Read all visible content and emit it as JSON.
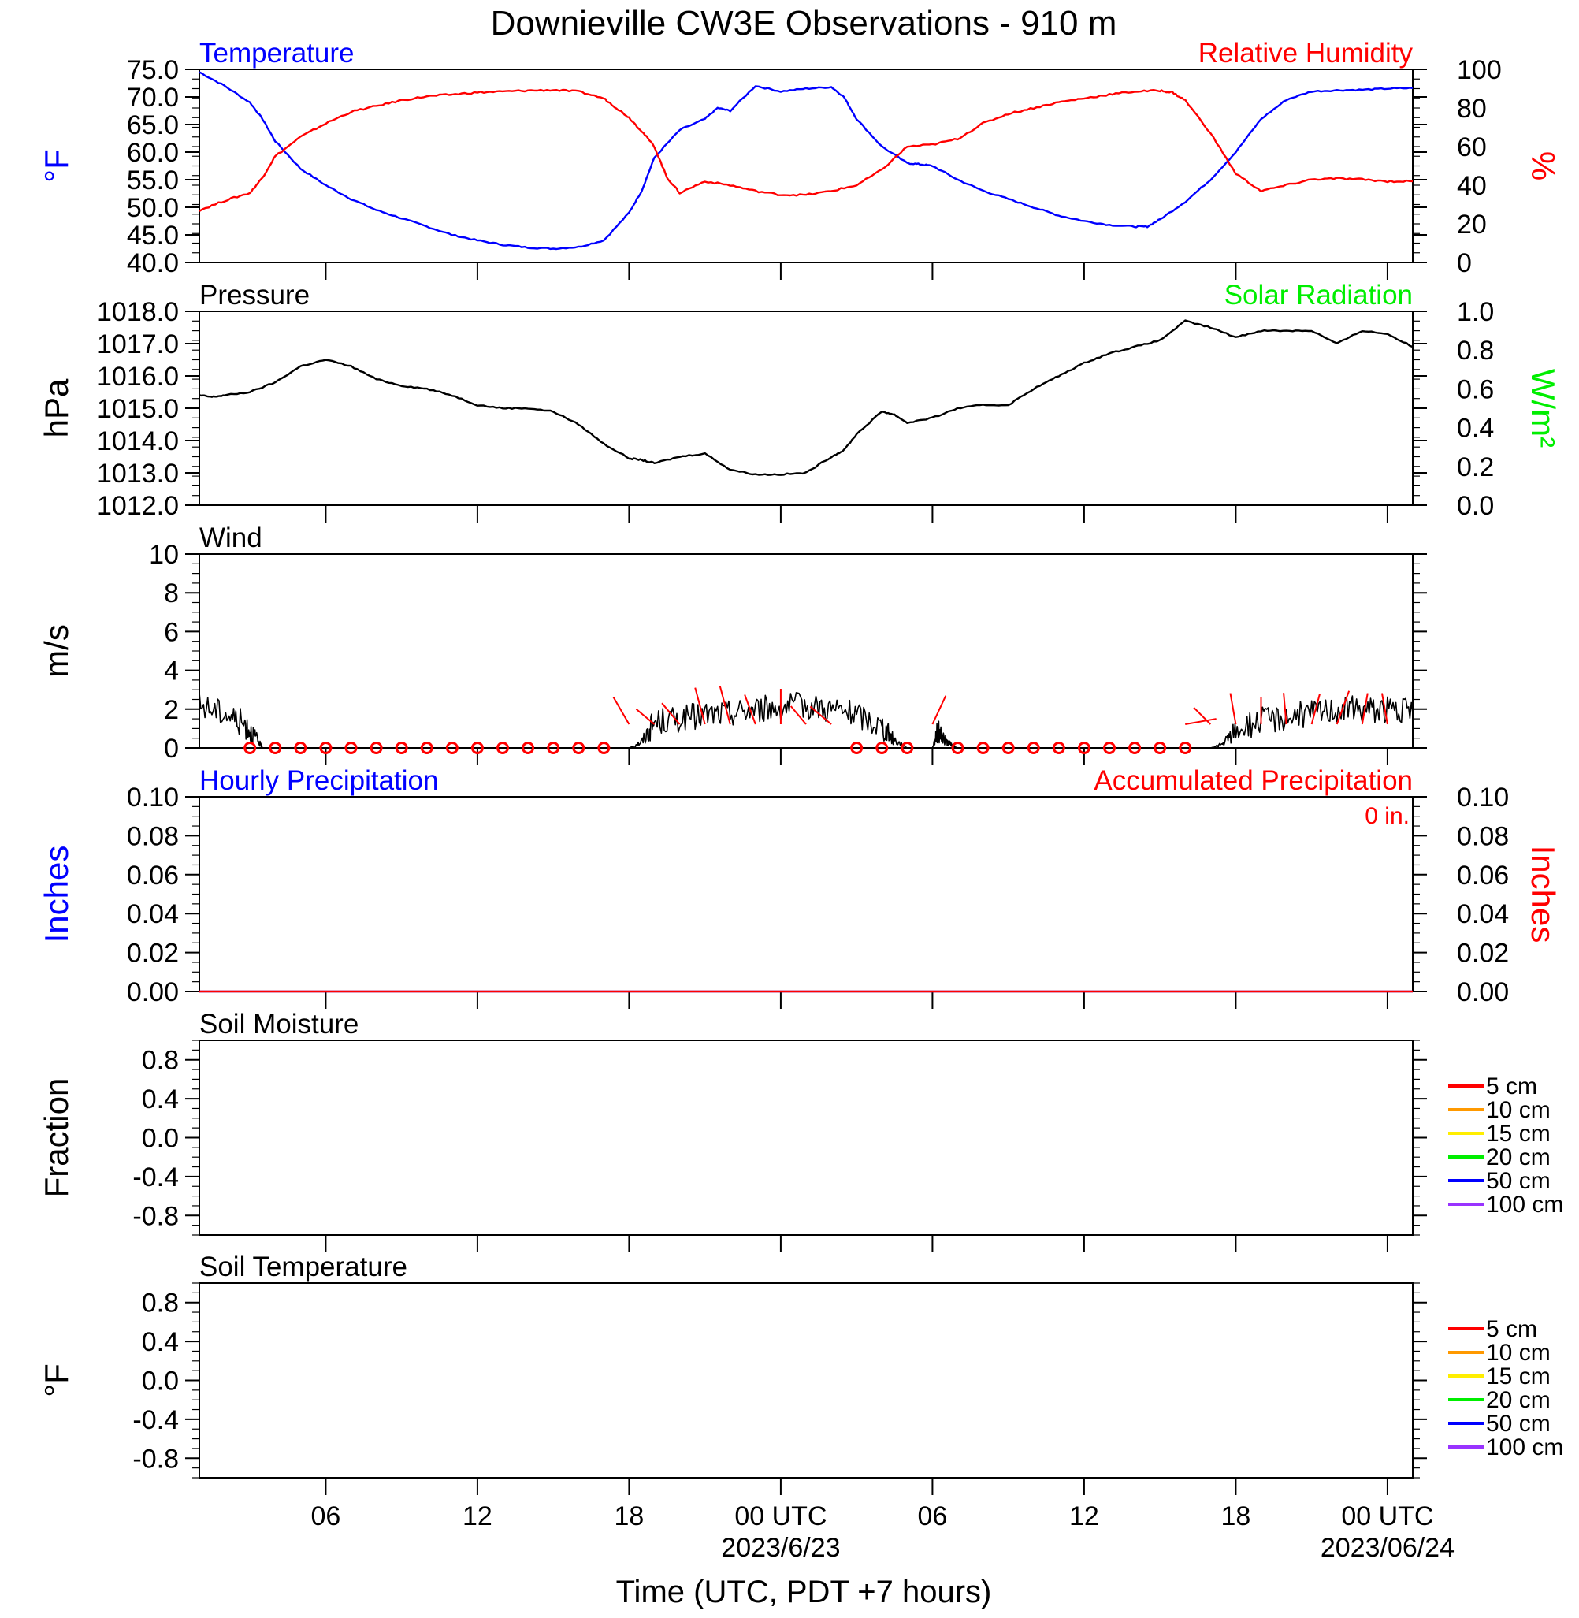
{
  "title": "Downieville CW3E Observations - 910 m",
  "xlabel": "Time (UTC, PDT +7 hours)",
  "colors": {
    "temperature": "#0000ff",
    "humidity": "#ff0000",
    "pressure": "#000000",
    "solar": "#00ee00",
    "wind": "#000000",
    "barb": "#ff0000",
    "precip_hourly": "#0000ff",
    "precip_accum": "#ff0000"
  },
  "x_axis": {
    "range_hours": [
      0,
      48
    ],
    "ticks": [
      {
        "h": 5,
        "label": "06"
      },
      {
        "h": 11,
        "label": "12"
      },
      {
        "h": 17,
        "label": "18"
      },
      {
        "h": 23,
        "label": "00 UTC",
        "date": "2023/6/23"
      },
      {
        "h": 29,
        "label": "06"
      },
      {
        "h": 35,
        "label": "12"
      },
      {
        "h": 41,
        "label": "18"
      },
      {
        "h": 47,
        "label": "00 UTC",
        "date": "2023/06/24"
      }
    ]
  },
  "chart_data": [
    {
      "type": "line",
      "panel": "temperature-humidity",
      "left_label": "Temperature",
      "right_label": "Relative Humidity",
      "left_unit": "°F",
      "right_unit": "%",
      "ylim_left": [
        40,
        75
      ],
      "yticks_left": [
        "40.0",
        "45.0",
        "50.0",
        "55.0",
        "60.0",
        "65.0",
        "70.0",
        "75.0"
      ],
      "ylim_right": [
        0,
        100
      ],
      "yticks_right": [
        "0",
        "20",
        "40",
        "60",
        "80",
        "100"
      ],
      "series": [
        {
          "name": "Temperature",
          "axis": "left",
          "x": [
            0,
            1,
            2,
            2.5,
            3,
            4,
            5,
            6,
            7,
            8,
            9,
            10,
            11,
            12,
            13,
            14,
            15,
            16,
            17,
            17.5,
            18,
            19,
            20,
            20.5,
            21,
            22,
            23,
            24,
            25,
            25.5,
            26,
            27,
            28,
            28.5,
            29,
            30,
            31,
            32,
            33,
            34,
            35,
            36,
            37,
            37.5,
            38,
            39,
            40,
            41,
            42,
            43,
            44,
            45,
            46,
            47,
            48
          ],
          "y": [
            74.5,
            72,
            69,
            66,
            62,
            57,
            54,
            51.5,
            49.5,
            48,
            46.5,
            45,
            44,
            43.2,
            42.7,
            42.5,
            42.8,
            44,
            49,
            53,
            59,
            64,
            66,
            68,
            67.5,
            72,
            71,
            71.5,
            71.8,
            70,
            66,
            61,
            58,
            57.8,
            57.5,
            55,
            53,
            51.5,
            50,
            48.5,
            47.5,
            46.8,
            46.5,
            46.5,
            47.8,
            51,
            55,
            60,
            66,
            69.5,
            71,
            71.2,
            71.3,
            71.5,
            71.6
          ]
        },
        {
          "name": "Relative Humidity",
          "axis": "right",
          "x": [
            0,
            1,
            2,
            2.5,
            3,
            4,
            5,
            6,
            7,
            8,
            9,
            10,
            11,
            12,
            13,
            14,
            15,
            16,
            16.5,
            17,
            17.5,
            18,
            18.5,
            19,
            20,
            21,
            22,
            23,
            24,
            25,
            26,
            27,
            28,
            29,
            30,
            31,
            32,
            33,
            34,
            35,
            36,
            37,
            38,
            38.5,
            39,
            40,
            41,
            42,
            43,
            44,
            45,
            46,
            47,
            48
          ],
          "y": [
            27,
            32,
            36,
            44,
            55,
            65,
            72,
            78,
            81,
            84,
            86,
            87,
            88,
            88.5,
            89,
            89.3,
            88.5,
            85,
            80,
            75,
            68,
            60,
            44,
            36,
            42,
            40,
            37,
            35,
            35,
            37,
            40,
            48,
            60,
            61,
            64,
            72,
            77,
            80,
            83,
            85,
            87,
            88.5,
            89,
            88,
            84,
            67,
            46,
            37,
            40,
            43,
            43.5,
            43,
            42,
            42
          ]
        }
      ]
    },
    {
      "type": "line",
      "panel": "pressure-solar",
      "left_label": "Pressure",
      "right_label": "Solar Radiation",
      "left_unit": "hPa",
      "right_unit": "W/m²",
      "ylim_left": [
        1012,
        1018
      ],
      "yticks_left": [
        "1012.0",
        "1013.0",
        "1014.0",
        "1015.0",
        "1016.0",
        "1017.0",
        "1018.0"
      ],
      "ylim_right": [
        0,
        1
      ],
      "yticks_right": [
        "0.0",
        "0.2",
        "0.4",
        "0.6",
        "0.8",
        "1.0"
      ],
      "series": [
        {
          "name": "Pressure",
          "axis": "left",
          "x": [
            0,
            0.5,
            1,
            2,
            3,
            4,
            5,
            6,
            7,
            8,
            9,
            10,
            11,
            12,
            13,
            14,
            15,
            16,
            17,
            17.5,
            18,
            19,
            20,
            21,
            22,
            23,
            24,
            25,
            25.5,
            26,
            27,
            27.5,
            28,
            29,
            30,
            31,
            32,
            33,
            34,
            35,
            36,
            37,
            38,
            39,
            40,
            41,
            42,
            43,
            44,
            45,
            46,
            47,
            48
          ],
          "y": [
            1015.4,
            1015.35,
            1015.4,
            1015.5,
            1015.8,
            1016.3,
            1016.5,
            1016.3,
            1015.9,
            1015.7,
            1015.6,
            1015.4,
            1015.1,
            1015.0,
            1015.0,
            1014.9,
            1014.5,
            1013.9,
            1013.45,
            1013.4,
            1013.3,
            1013.5,
            1013.6,
            1013.1,
            1012.95,
            1012.95,
            1013.0,
            1013.5,
            1013.7,
            1014.2,
            1014.9,
            1014.8,
            1014.55,
            1014.7,
            1015.0,
            1015.1,
            1015.1,
            1015.6,
            1016.0,
            1016.4,
            1016.7,
            1016.9,
            1017.1,
            1017.7,
            1017.5,
            1017.2,
            1017.4,
            1017.4,
            1017.4,
            1017.0,
            1017.4,
            1017.3,
            1016.9
          ]
        }
      ]
    },
    {
      "type": "line",
      "panel": "wind",
      "left_label": "Wind",
      "left_unit": "m/s",
      "ylim_left": [
        0,
        10
      ],
      "yticks_left": [
        "0",
        "2",
        "4",
        "6",
        "8",
        "10"
      ],
      "series": [
        {
          "name": "Wind",
          "axis": "left",
          "x": [
            0,
            1,
            1.8,
            2.2,
            2.5,
            17,
            17.5,
            18,
            19,
            20,
            21,
            22,
            23,
            24,
            25,
            26,
            27,
            27.5,
            28,
            29,
            29.2,
            29.5,
            29.8,
            30,
            40,
            40.5,
            41,
            42,
            43,
            44,
            45,
            46,
            47,
            48
          ],
          "y": [
            2.2,
            1.8,
            1.2,
            0.6,
            0,
            0,
            0.3,
            1.3,
            1.5,
            1.7,
            1.8,
            2.0,
            2.1,
            2.2,
            2.0,
            1.7,
            1.1,
            0.4,
            0,
            0,
            0.9,
            0.4,
            0.1,
            0,
            0,
            0.2,
            0.9,
            1.4,
            1.6,
            1.8,
            2.0,
            2.0,
            2.0,
            1.8
          ]
        }
      ],
      "calm_markers_h": [
        2,
        3,
        4,
        5,
        6,
        7,
        8,
        9,
        10,
        11,
        12,
        13,
        14,
        15,
        16,
        26,
        27,
        28,
        30,
        31,
        32,
        33,
        34,
        35,
        36,
        37,
        38,
        39
      ],
      "barbs": [
        {
          "h": 17,
          "len": 40,
          "dir": -30
        },
        {
          "h": 18,
          "len": 30,
          "dir": -50
        },
        {
          "h": 19,
          "len": 35,
          "dir": -40
        },
        {
          "h": 20,
          "len": 48,
          "dir": -15
        },
        {
          "h": 21,
          "len": 50,
          "dir": -15
        },
        {
          "h": 22,
          "len": 40,
          "dir": -20
        },
        {
          "h": 23,
          "len": 45,
          "dir": 0
        },
        {
          "h": 24,
          "len": 30,
          "dir": -40
        },
        {
          "h": 25,
          "len": 35,
          "dir": -50
        },
        {
          "h": 29,
          "len": 40,
          "dir": 25
        },
        {
          "h": 39,
          "len": 40,
          "dir": 80
        },
        {
          "h": 40,
          "len": 30,
          "dir": -45
        },
        {
          "h": 41,
          "len": 40,
          "dir": -10
        },
        {
          "h": 42,
          "len": 35,
          "dir": 0
        },
        {
          "h": 43,
          "len": 40,
          "dir": -5
        },
        {
          "h": 44,
          "len": 40,
          "dir": 15
        },
        {
          "h": 45,
          "len": 45,
          "dir": 20
        },
        {
          "h": 46,
          "len": 40,
          "dir": 10
        },
        {
          "h": 47,
          "len": 40,
          "dir": -10
        }
      ]
    },
    {
      "type": "line",
      "panel": "precipitation",
      "left_label": "Hourly Precipitation",
      "right_label": "Accumulated Precipitation",
      "left_unit": "Inches",
      "right_unit": "Inches",
      "annotation": "0 in.",
      "ylim_left": [
        0,
        0.1
      ],
      "yticks_left": [
        "0.00",
        "0.02",
        "0.04",
        "0.06",
        "0.08",
        "0.10"
      ],
      "ylim_right": [
        0,
        0.1
      ],
      "yticks_right": [
        "0.00",
        "0.02",
        "0.04",
        "0.06",
        "0.08",
        "0.10"
      ],
      "series": [
        {
          "name": "Hourly Precipitation",
          "axis": "left",
          "x": [
            0,
            48
          ],
          "y": [
            0,
            0
          ]
        },
        {
          "name": "Accumulated Precipitation",
          "axis": "right",
          "x": [
            0,
            48
          ],
          "y": [
            0,
            0
          ]
        }
      ]
    },
    {
      "type": "line",
      "panel": "soil-moisture",
      "left_label": "Soil Moisture",
      "left_unit": "Fraction",
      "ylim_left": [
        -1,
        1
      ],
      "yticks_left": [
        "-0.8",
        "-0.4",
        "0.0",
        "0.4",
        "0.8"
      ],
      "legend": [
        {
          "name": "5 cm",
          "color": "#ff0000"
        },
        {
          "name": "10 cm",
          "color": "#ff9900"
        },
        {
          "name": "15 cm",
          "color": "#ffee00"
        },
        {
          "name": "20 cm",
          "color": "#00ee00"
        },
        {
          "name": "50 cm",
          "color": "#0000ff"
        },
        {
          "name": "100 cm",
          "color": "#9933ff"
        }
      ]
    },
    {
      "type": "line",
      "panel": "soil-temperature",
      "left_label": "Soil Temperature",
      "left_unit": "°F",
      "ylim_left": [
        -1,
        1
      ],
      "yticks_left": [
        "-0.8",
        "-0.4",
        "0.0",
        "0.4",
        "0.8"
      ],
      "legend": [
        {
          "name": "5 cm",
          "color": "#ff0000"
        },
        {
          "name": "10 cm",
          "color": "#ff9900"
        },
        {
          "name": "15 cm",
          "color": "#ffee00"
        },
        {
          "name": "20 cm",
          "color": "#00ee00"
        },
        {
          "name": "50 cm",
          "color": "#0000ff"
        },
        {
          "name": "100 cm",
          "color": "#9933ff"
        }
      ]
    }
  ]
}
